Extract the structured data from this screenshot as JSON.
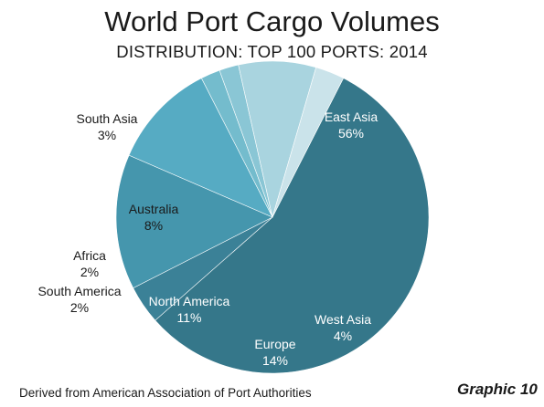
{
  "title": "World Port Cargo Volumes",
  "subtitle": "DISTRIBUTION: TOP 100 PORTS: 2014",
  "footer": {
    "source": "Derived from  American  Association of Port Authorities",
    "graphic_label": "Graphic 10"
  },
  "chart_data": {
    "type": "pie",
    "unit": "%",
    "slices": [
      {
        "label": "East Asia",
        "value": 56,
        "value_label": "56%",
        "color": "#35778a"
      },
      {
        "label": "West Asia",
        "value": 4,
        "value_label": "4%",
        "color": "#3b8197"
      },
      {
        "label": "Europe",
        "value": 14,
        "value_label": "14%",
        "color": "#4596ad"
      },
      {
        "label": "North America",
        "value": 11,
        "value_label": "11%",
        "color": "#56abc3"
      },
      {
        "label": "South America",
        "value": 2,
        "value_label": "2%",
        "color": "#74bccd"
      },
      {
        "label": "Africa",
        "value": 2,
        "value_label": "2%",
        "color": "#8ac6d5"
      },
      {
        "label": "Australia",
        "value": 8,
        "value_label": "8%",
        "color": "#a9d4df"
      },
      {
        "label": "South Asia",
        "value": 3,
        "value_label": "3%",
        "color": "#cae3ea"
      }
    ]
  }
}
